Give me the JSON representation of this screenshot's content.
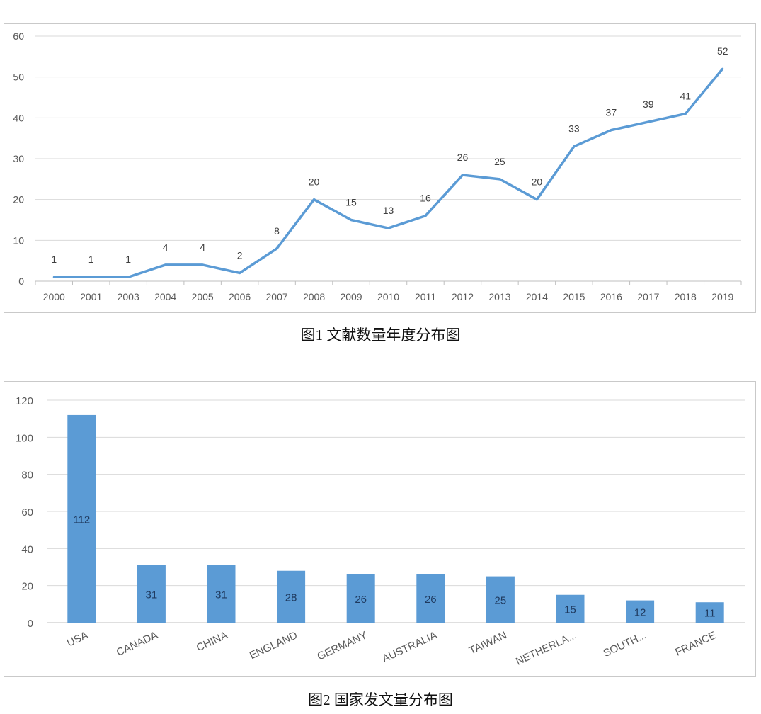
{
  "chart_data": [
    {
      "type": "line",
      "title": "图1 文献数量年度分布图",
      "xlabel": "",
      "ylabel": "",
      "categories": [
        "2000",
        "2001",
        "2003",
        "2004",
        "2005",
        "2006",
        "2007",
        "2008",
        "2009",
        "2010",
        "2011",
        "2012",
        "2013",
        "2014",
        "2015",
        "2016",
        "2017",
        "2018",
        "2019"
      ],
      "values": [
        1,
        1,
        1,
        4,
        4,
        2,
        8,
        20,
        15,
        13,
        16,
        26,
        25,
        20,
        33,
        37,
        39,
        41,
        52
      ],
      "ylim": [
        0,
        60
      ],
      "yticks": [
        0,
        10,
        20,
        30,
        40,
        50,
        60
      ],
      "grid": true,
      "color": "#5b9bd5"
    },
    {
      "type": "bar",
      "title": "图2 国家发文量分布图",
      "xlabel": "",
      "ylabel": "",
      "categories": [
        "USA",
        "CANADA",
        "CHINA",
        "ENGLAND",
        "GERMANY",
        "AUSTRALIA",
        "TAIWAN",
        "NETHERLA...",
        "SOUTH...",
        "FRANCE"
      ],
      "values": [
        112,
        31,
        31,
        28,
        26,
        26,
        25,
        15,
        12,
        11
      ],
      "ylim": [
        0,
        120
      ],
      "yticks": [
        0,
        20,
        40,
        60,
        80,
        100,
        120
      ],
      "grid": true,
      "color": "#5b9bd5"
    }
  ]
}
